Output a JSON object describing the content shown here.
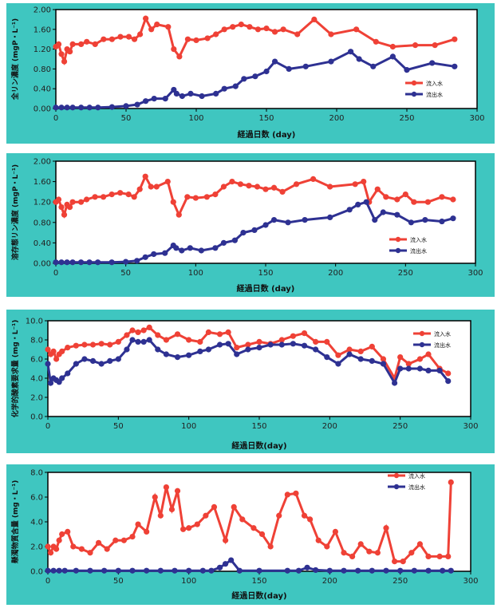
{
  "colors": {
    "panel_bg": "#3fc6c0",
    "inflow": "#ef4136",
    "outflow": "#2e3192",
    "plot_bg": "#ffffff"
  },
  "chart_data": [
    {
      "type": "line",
      "xlabel": "経過日数 (day)",
      "ylabel": "全リン濃度 (mgP・L⁻¹)",
      "xlim": [
        0,
        300
      ],
      "ylim": [
        0,
        2.0
      ],
      "xticks": [
        "0",
        "50",
        "100",
        "150",
        "200",
        "250",
        "300"
      ],
      "yticks": [
        "0.00",
        "0.40",
        "0.80",
        "1.20",
        "1.60",
        "2.00"
      ],
      "legend_position": "right",
      "series": [
        {
          "name": "流入水",
          "x": [
            0,
            2,
            4,
            6,
            8,
            10,
            12,
            18,
            22,
            28,
            34,
            40,
            46,
            52,
            56,
            60,
            64,
            68,
            72,
            80,
            84,
            88,
            94,
            100,
            108,
            114,
            120,
            126,
            132,
            138,
            144,
            150,
            156,
            162,
            172,
            184,
            196,
            214,
            228,
            240,
            256,
            270,
            284
          ],
          "y": [
            1.25,
            1.3,
            1.1,
            0.95,
            1.2,
            1.15,
            1.3,
            1.3,
            1.35,
            1.3,
            1.4,
            1.4,
            1.45,
            1.45,
            1.4,
            1.5,
            1.82,
            1.6,
            1.7,
            1.65,
            1.2,
            1.05,
            1.4,
            1.38,
            1.42,
            1.5,
            1.6,
            1.65,
            1.7,
            1.65,
            1.6,
            1.62,
            1.55,
            1.6,
            1.5,
            1.8,
            1.5,
            1.6,
            1.35,
            1.25,
            1.28,
            1.28,
            1.4
          ]
        },
        {
          "name": "流出水",
          "x": [
            0,
            4,
            8,
            12,
            18,
            24,
            30,
            40,
            50,
            58,
            64,
            70,
            78,
            84,
            86,
            90,
            96,
            104,
            114,
            120,
            128,
            134,
            142,
            150,
            156,
            166,
            178,
            196,
            210,
            216,
            226,
            240,
            250,
            268,
            284
          ],
          "y": [
            0.02,
            0.02,
            0.02,
            0.02,
            0.02,
            0.02,
            0.02,
            0.03,
            0.05,
            0.08,
            0.15,
            0.2,
            0.2,
            0.38,
            0.3,
            0.25,
            0.3,
            0.25,
            0.3,
            0.4,
            0.45,
            0.6,
            0.65,
            0.75,
            0.95,
            0.8,
            0.85,
            0.95,
            1.15,
            1.0,
            0.85,
            1.05,
            0.78,
            0.92,
            0.85
          ]
        }
      ]
    },
    {
      "type": "line",
      "xlabel": "経過日数 (day)",
      "ylabel": "溶存態リン濃度 (mgP・L⁻¹)",
      "xlim": [
        0,
        300
      ],
      "ylim": [
        0,
        2.0
      ],
      "xticks": [
        "0",
        "50",
        "100",
        "150",
        "200",
        "250",
        "300"
      ],
      "yticks": [
        "0.00",
        "0.40",
        "0.80",
        "1.20",
        "1.60",
        "2.00"
      ],
      "legend_position": "right",
      "series": [
        {
          "name": "流入水",
          "x": [
            0,
            2,
            4,
            6,
            8,
            10,
            12,
            18,
            22,
            28,
            34,
            40,
            46,
            52,
            56,
            60,
            64,
            68,
            72,
            80,
            84,
            88,
            94,
            100,
            108,
            114,
            120,
            126,
            132,
            138,
            144,
            150,
            156,
            162,
            172,
            184,
            196,
            214,
            220,
            224,
            230,
            236,
            244,
            250,
            256,
            266,
            276,
            284
          ],
          "y": [
            1.2,
            1.25,
            1.1,
            0.95,
            1.15,
            1.1,
            1.2,
            1.2,
            1.25,
            1.3,
            1.3,
            1.35,
            1.38,
            1.35,
            1.3,
            1.45,
            1.7,
            1.5,
            1.5,
            1.6,
            1.2,
            0.95,
            1.3,
            1.28,
            1.3,
            1.35,
            1.5,
            1.6,
            1.55,
            1.52,
            1.5,
            1.45,
            1.48,
            1.4,
            1.55,
            1.65,
            1.5,
            1.55,
            1.6,
            1.2,
            1.45,
            1.3,
            1.25,
            1.35,
            1.2,
            1.2,
            1.3,
            1.25
          ]
        },
        {
          "name": "流出水",
          "x": [
            0,
            4,
            8,
            12,
            18,
            24,
            30,
            40,
            50,
            58,
            64,
            70,
            78,
            84,
            86,
            90,
            96,
            104,
            114,
            120,
            128,
            134,
            142,
            150,
            156,
            166,
            178,
            196,
            210,
            216,
            222,
            228,
            234,
            244,
            254,
            264,
            276,
            284
          ],
          "y": [
            0.02,
            0.02,
            0.02,
            0.02,
            0.02,
            0.02,
            0.02,
            0.02,
            0.03,
            0.05,
            0.12,
            0.18,
            0.2,
            0.35,
            0.3,
            0.25,
            0.3,
            0.25,
            0.3,
            0.4,
            0.45,
            0.6,
            0.65,
            0.75,
            0.85,
            0.8,
            0.85,
            0.9,
            1.05,
            1.15,
            1.2,
            0.85,
            1.0,
            0.95,
            0.8,
            0.85,
            0.82,
            0.88
          ]
        }
      ]
    },
    {
      "type": "line",
      "xlabel": "経過日数(day)",
      "ylabel": "化学的酸素要求量 (mg・L⁻¹)",
      "xlim": [
        0,
        300
      ],
      "ylim": [
        0,
        10.0
      ],
      "xticks": [
        "0",
        "50",
        "100",
        "150",
        "200",
        "250",
        "300"
      ],
      "yticks": [
        "0.0",
        "2.0",
        "4.0",
        "6.0",
        "8.0",
        "10.0"
      ],
      "legend_position": "top-right",
      "series": [
        {
          "name": "流入水",
          "x": [
            0,
            2,
            4,
            6,
            8,
            10,
            14,
            20,
            26,
            32,
            38,
            44,
            50,
            56,
            60,
            64,
            68,
            72,
            78,
            84,
            92,
            100,
            108,
            114,
            122,
            128,
            134,
            142,
            150,
            158,
            166,
            174,
            182,
            190,
            198,
            206,
            214,
            222,
            230,
            238,
            246,
            250,
            256,
            264,
            270,
            278,
            284
          ],
          "y": [
            7.0,
            6.5,
            6.8,
            6.0,
            6.5,
            6.8,
            7.2,
            7.4,
            7.5,
            7.5,
            7.6,
            7.5,
            7.8,
            8.5,
            9.0,
            8.8,
            9.0,
            9.3,
            8.5,
            8.0,
            8.6,
            8.0,
            7.8,
            8.8,
            8.6,
            8.8,
            7.2,
            7.5,
            7.8,
            7.6,
            8.0,
            8.4,
            8.7,
            7.8,
            7.8,
            6.4,
            7.0,
            6.8,
            7.3,
            6.0,
            4.0,
            6.2,
            5.5,
            6.0,
            6.5,
            5.0,
            4.5
          ]
        },
        {
          "name": "流出水",
          "x": [
            0,
            2,
            4,
            6,
            8,
            10,
            14,
            20,
            26,
            32,
            38,
            44,
            50,
            56,
            60,
            64,
            68,
            72,
            78,
            84,
            92,
            100,
            108,
            114,
            122,
            128,
            134,
            142,
            150,
            158,
            166,
            174,
            182,
            190,
            198,
            206,
            214,
            222,
            230,
            238,
            246,
            250,
            256,
            264,
            270,
            278,
            284
          ],
          "y": [
            5.5,
            3.5,
            4.0,
            3.8,
            3.6,
            4.0,
            4.5,
            5.5,
            6.0,
            5.8,
            5.5,
            5.8,
            6.0,
            7.0,
            8.0,
            7.8,
            7.8,
            8.0,
            7.0,
            6.5,
            6.2,
            6.4,
            6.8,
            7.0,
            7.5,
            7.6,
            6.5,
            7.0,
            7.2,
            7.5,
            7.5,
            7.6,
            7.4,
            7.0,
            6.2,
            5.5,
            6.5,
            6.0,
            5.8,
            5.5,
            3.5,
            5.0,
            5.0,
            5.0,
            4.8,
            4.8,
            3.7
          ]
        }
      ]
    },
    {
      "type": "line",
      "xlabel": "経過日数(day)",
      "ylabel": "懸濁物質含量 (mg・L⁻¹)",
      "xlim": [
        0,
        300
      ],
      "ylim": [
        0,
        8.0
      ],
      "xticks": [
        "0",
        "50",
        "100",
        "150",
        "200",
        "250",
        "300"
      ],
      "yticks": [
        "0.0",
        "2.0",
        "4.0",
        "6.0",
        "8.0"
      ],
      "legend_position": "top-right",
      "series": [
        {
          "name": "流入水",
          "x": [
            0,
            2,
            4,
            6,
            8,
            10,
            14,
            18,
            24,
            30,
            36,
            42,
            48,
            54,
            60,
            64,
            70,
            76,
            80,
            84,
            88,
            92,
            96,
            100,
            106,
            112,
            118,
            126,
            132,
            138,
            146,
            152,
            158,
            164,
            170,
            176,
            182,
            186,
            192,
            198,
            204,
            210,
            216,
            222,
            228,
            234,
            240,
            246,
            252,
            258,
            264,
            270,
            278,
            284,
            286
          ],
          "y": [
            2.0,
            1.5,
            2.0,
            1.8,
            2.5,
            3.0,
            3.2,
            2.0,
            1.8,
            1.5,
            2.3,
            1.8,
            2.5,
            2.5,
            2.8,
            3.8,
            3.2,
            6.0,
            4.5,
            6.8,
            5.0,
            6.5,
            3.4,
            3.5,
            3.8,
            4.5,
            5.2,
            2.5,
            5.2,
            4.2,
            3.5,
            3.0,
            2.0,
            4.5,
            6.2,
            6.3,
            4.5,
            4.2,
            2.5,
            2.0,
            3.2,
            1.5,
            1.2,
            2.2,
            1.6,
            1.5,
            3.5,
            0.8,
            0.8,
            1.5,
            2.2,
            1.2,
            1.2,
            1.2,
            7.2
          ]
        },
        {
          "name": "流出水",
          "x": [
            0,
            4,
            8,
            12,
            20,
            30,
            40,
            50,
            60,
            70,
            80,
            90,
            100,
            110,
            116,
            122,
            126,
            130,
            136,
            150,
            170,
            178,
            184,
            190,
            200,
            210,
            220,
            230,
            240,
            250,
            260,
            270,
            280,
            286
          ],
          "y": [
            0.05,
            0.05,
            0.05,
            0.05,
            0.05,
            0.05,
            0.05,
            0.05,
            0.05,
            0.05,
            0.05,
            0.05,
            0.05,
            0.05,
            0.05,
            0.3,
            0.6,
            0.9,
            0.05,
            0.05,
            0.05,
            0.05,
            0.3,
            0.1,
            0.05,
            0.05,
            0.05,
            0.05,
            0.05,
            0.05,
            0.05,
            0.05,
            0.05,
            0.05
          ]
        }
      ]
    }
  ]
}
